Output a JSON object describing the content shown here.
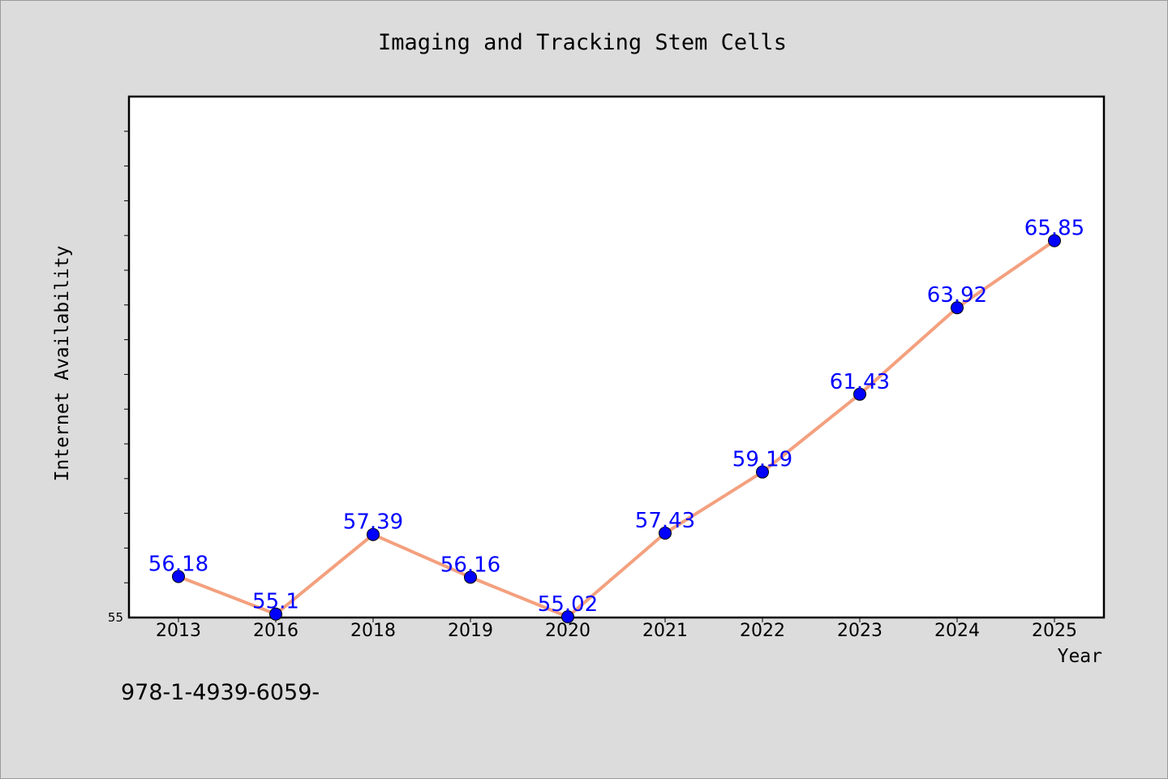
{
  "chart_data": {
    "type": "line",
    "title": "Imaging and Tracking Stem Cells",
    "xlabel": "Year",
    "ylabel": "Internet Availability",
    "categories": [
      "2013",
      "2016",
      "2018",
      "2019",
      "2020",
      "2021",
      "2022",
      "2023",
      "2024",
      "2025"
    ],
    "series": [
      {
        "values": [
          56.18,
          55.1,
          57.39,
          56.16,
          55.02,
          57.43,
          59.19,
          61.43,
          63.92,
          65.85
        ],
        "labels": [
          "56.18",
          "55.1",
          "57.39",
          "56.16",
          "55.02",
          "57.43",
          "59.19",
          "61.43",
          "63.92",
          "65.85"
        ]
      }
    ],
    "y_tick_labels": [
      "55"
    ],
    "ylim": [
      55,
      70
    ],
    "grid": false,
    "legend": "none",
    "colors": {
      "line": "#f4a07e",
      "marker": "#0000ff",
      "data_label": "#0000ff",
      "plot_background": "#ffffff",
      "figure_background": "#dcdcdc"
    }
  },
  "footer": {
    "text": "978-1-4939-6059-"
  }
}
